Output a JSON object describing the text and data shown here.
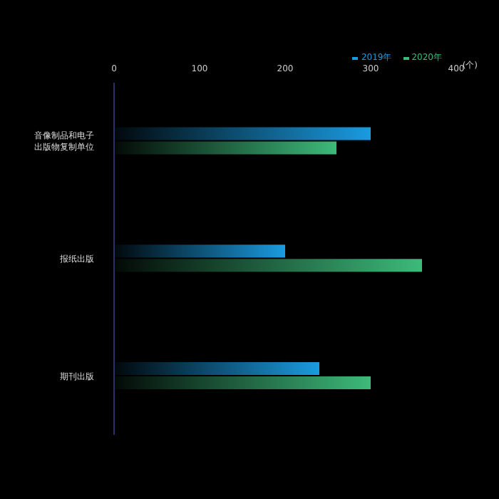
{
  "chart_data": {
    "type": "bar",
    "orientation": "horizontal",
    "xlabel": "(个)",
    "categories": [
      "音像制品和电子出版物复制单位",
      "报纸出版",
      "期刊出版"
    ],
    "series": [
      {
        "name": "2019年",
        "color": "#1a9be0",
        "values": [
          300,
          200,
          240
        ]
      },
      {
        "name": "2020年",
        "color": "#3dba7a",
        "values": [
          260,
          360,
          300
        ]
      }
    ],
    "xlim": [
      0,
      400
    ],
    "xticks": [
      0,
      100,
      200,
      300,
      400
    ],
    "legend": "top right"
  }
}
